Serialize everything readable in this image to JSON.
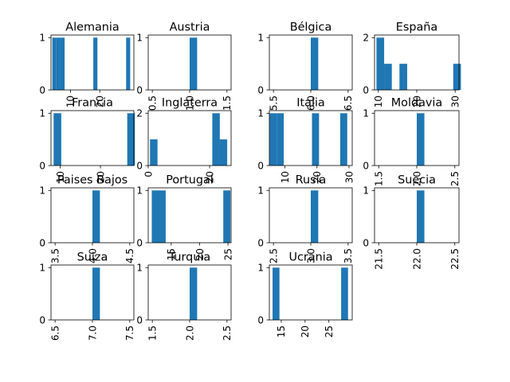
{
  "chart_data": [
    {
      "type": "bar",
      "title": "Alemania",
      "xticks": [
        "10",
        "20"
      ],
      "xrange": [
        3.35,
        31.65
      ],
      "ylim": [
        0,
        1.05
      ],
      "yticks": [
        0,
        1
      ],
      "bars": [
        [
          4.5,
          1
        ],
        [
          5.9,
          1
        ],
        [
          7.3,
          1
        ],
        [
          18.5,
          1
        ],
        [
          29.7,
          1
        ]
      ],
      "bar_width": 1.4
    },
    {
      "type": "bar",
      "title": "Austria",
      "xticks": [
        "0.5",
        "1.0",
        "1.5"
      ],
      "xrange": [
        0.445,
        1.555
      ],
      "ylim": [
        0,
        1.05
      ],
      "yticks": [
        0,
        1
      ],
      "bars": [
        [
          1.05,
          1
        ]
      ],
      "bar_width": 0.1
    },
    {
      "type": "bar",
      "title": "Bélgica",
      "xticks": [
        "5.5",
        "6.0",
        "6.5"
      ],
      "xrange": [
        5.445,
        6.555
      ],
      "ylim": [
        0,
        1.05
      ],
      "yticks": [
        0,
        1
      ],
      "bars": [
        [
          6.05,
          1
        ]
      ],
      "bar_width": 0.1
    },
    {
      "type": "bar",
      "title": "España",
      "xticks": [
        "10",
        "20",
        "30"
      ],
      "xrange": [
        9.0,
        31.0
      ],
      "ylim": [
        0,
        2.1
      ],
      "yticks": [
        0,
        2
      ],
      "bars": [
        [
          10.5,
          2
        ],
        [
          12.5,
          1
        ],
        [
          16.5,
          1
        ],
        [
          30.5,
          1
        ]
      ],
      "bar_width": 2.0
    },
    {
      "type": "bar",
      "title": "Francia",
      "xticks": [
        "10",
        "20"
      ],
      "xrange": [
        7.7,
        28.3
      ],
      "ylim": [
        0,
        1.05
      ],
      "yticks": [
        0,
        1
      ],
      "bars": [
        [
          9.3,
          1
        ],
        [
          27.6,
          1
        ]
      ],
      "bar_width": 1.9
    },
    {
      "type": "bar",
      "title": "Inglaterra",
      "xticks": [
        "0",
        "20"
      ],
      "xrange": [
        0.0,
        27.0
      ],
      "ylim": [
        0,
        2.1
      ],
      "yticks": [
        0,
        2
      ],
      "bars": [
        [
          1.8,
          1
        ],
        [
          22.1,
          2
        ],
        [
          24.5,
          1
        ]
      ],
      "bar_width": 2.45
    },
    {
      "type": "bar",
      "title": "Italia",
      "xticks": [
        "10",
        "20",
        "30"
      ],
      "xrange": [
        5.15,
        31.0
      ],
      "ylim": [
        0,
        1.05
      ],
      "yticks": [
        0,
        1
      ],
      "bars": [
        [
          6.35,
          1
        ],
        [
          8.55,
          1
        ],
        [
          19.55,
          1
        ],
        [
          28.35,
          1
        ]
      ],
      "bar_width": 2.2
    },
    {
      "type": "bar",
      "title": "Moldavia",
      "xticks": [
        "1.5",
        "2.0",
        "2.5"
      ],
      "xrange": [
        1.445,
        2.555
      ],
      "ylim": [
        0,
        1.05
      ],
      "yticks": [
        0,
        1
      ],
      "bars": [
        [
          2.05,
          1
        ]
      ],
      "bar_width": 0.1
    },
    {
      "type": "bar",
      "title": "Paises Bajos",
      "xticks": [
        "3.5",
        "4.0",
        "4.5"
      ],
      "xrange": [
        3.445,
        4.555
      ],
      "ylim": [
        0,
        1.05
      ],
      "yticks": [
        0,
        1
      ],
      "bars": [
        [
          4.05,
          1
        ]
      ],
      "bar_width": 0.1
    },
    {
      "type": "bar",
      "title": "Portugal",
      "xticks": [
        "15",
        "20",
        "25"
      ],
      "xrange": [
        10.95,
        25.55
      ],
      "ylim": [
        0,
        1.05
      ],
      "yticks": [
        0,
        1
      ],
      "bars": [
        [
          12.2,
          1
        ],
        [
          13.4,
          1
        ],
        [
          24.8,
          1
        ]
      ],
      "bar_width": 1.25
    },
    {
      "type": "bar",
      "title": "Rusia",
      "xticks": [
        "2.5",
        "3.0",
        "3.5"
      ],
      "xrange": [
        2.445,
        3.555
      ],
      "ylim": [
        0,
        1.05
      ],
      "yticks": [
        0,
        1
      ],
      "bars": [
        [
          3.05,
          1
        ]
      ],
      "bar_width": 0.1
    },
    {
      "type": "bar",
      "title": "Suecia",
      "xticks": [
        "21.5",
        "22.0",
        "22.5"
      ],
      "xrange": [
        21.445,
        22.555
      ],
      "ylim": [
        0,
        1.05
      ],
      "yticks": [
        0,
        1
      ],
      "bars": [
        [
          22.05,
          1
        ]
      ],
      "bar_width": 0.1
    },
    {
      "type": "bar",
      "title": "Suiza",
      "xticks": [
        "6.5",
        "7.0",
        "7.5"
      ],
      "xrange": [
        6.445,
        7.555
      ],
      "ylim": [
        0,
        1.05
      ],
      "yticks": [
        0,
        1
      ],
      "bars": [
        [
          7.05,
          1
        ]
      ],
      "bar_width": 0.1
    },
    {
      "type": "bar",
      "title": "Turquía",
      "xticks": [
        "1.5",
        "2.0",
        "2.5"
      ],
      "xrange": [
        1.445,
        2.555
      ],
      "ylim": [
        0,
        1.05
      ],
      "yticks": [
        0,
        1
      ],
      "bars": [
        [
          2.05,
          1
        ]
      ],
      "bar_width": 0.1
    },
    {
      "type": "bar",
      "title": "Ucrania",
      "xticks": [
        "15",
        "20",
        "25"
      ],
      "xrange": [
        12.5,
        29.9
      ],
      "ylim": [
        0,
        1.05
      ],
      "yticks": [
        0,
        1
      ],
      "bars": [
        [
          13.9,
          1
        ],
        [
          28.3,
          1
        ]
      ],
      "bar_width": 1.45
    }
  ],
  "colors": {
    "bar": "#1f77b4",
    "axes": "#000000"
  }
}
